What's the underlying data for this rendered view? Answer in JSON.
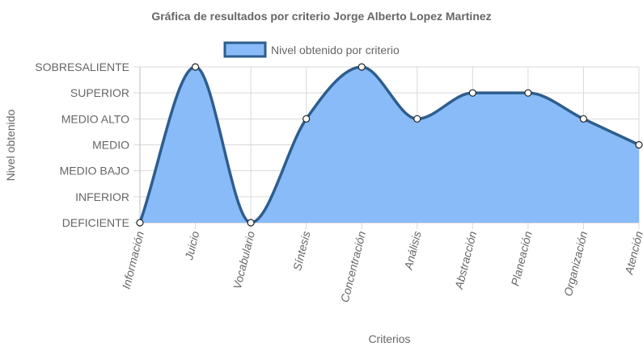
{
  "chart_data": {
    "type": "area",
    "title": "Gráfica de resultados por criterio Jorge Alberto Lopez Martinez",
    "xlabel": "Criterios",
    "ylabel": "Nivel obtenido",
    "legend": {
      "position": "top",
      "label": "Nivel obtenido por criterio"
    },
    "grid": true,
    "y_levels": [
      "DEFICIENTE",
      "INFERIOR",
      "MEDIO BAJO",
      "MEDIO",
      "MEDIO ALTO",
      "SUPERIOR",
      "SOBRESALIENTE"
    ],
    "ylim": [
      0,
      6
    ],
    "categories": [
      "Información",
      "Juicio",
      "Vocabulario",
      "Síntesis",
      "Concentración",
      "Análisis",
      "Abstracción",
      "Planeación",
      "Organización",
      "Atención"
    ],
    "series": [
      {
        "name": "Nivel obtenido por criterio",
        "values": [
          0,
          6,
          0,
          4,
          6,
          4,
          5,
          5,
          4,
          3
        ]
      }
    ],
    "colors": {
      "fill": "#88bbf7",
      "line": "#2e5d8e",
      "grid": "#d9d9d9",
      "axis": "#666666",
      "text": "#666666"
    }
  }
}
